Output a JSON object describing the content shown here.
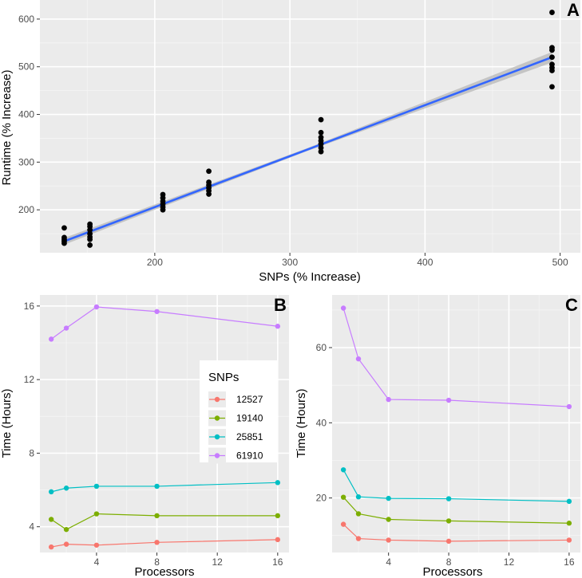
{
  "chart_data": [
    {
      "panel": "A",
      "type": "scatter",
      "title": "",
      "xlabel": "SNPs (% Increase)",
      "ylabel": "Runtime (% Increase)",
      "xlim": [
        115,
        515
      ],
      "ylim": [
        110,
        640
      ],
      "xticks": [
        200,
        300,
        400,
        500
      ],
      "yticks": [
        200,
        300,
        400,
        500,
        600
      ],
      "grid": true,
      "points": [
        {
          "x": 133,
          "y": 162
        },
        {
          "x": 133,
          "y": 142
        },
        {
          "x": 133,
          "y": 138
        },
        {
          "x": 133,
          "y": 134
        },
        {
          "x": 133,
          "y": 130
        },
        {
          "x": 152,
          "y": 170
        },
        {
          "x": 152,
          "y": 165
        },
        {
          "x": 152,
          "y": 158
        },
        {
          "x": 152,
          "y": 150
        },
        {
          "x": 152,
          "y": 143
        },
        {
          "x": 152,
          "y": 138
        },
        {
          "x": 152,
          "y": 126
        },
        {
          "x": 206,
          "y": 232
        },
        {
          "x": 206,
          "y": 225
        },
        {
          "x": 206,
          "y": 218
        },
        {
          "x": 206,
          "y": 212
        },
        {
          "x": 206,
          "y": 206
        },
        {
          "x": 206,
          "y": 200
        },
        {
          "x": 240,
          "y": 281
        },
        {
          "x": 240,
          "y": 258
        },
        {
          "x": 240,
          "y": 252
        },
        {
          "x": 240,
          "y": 246
        },
        {
          "x": 240,
          "y": 240
        },
        {
          "x": 240,
          "y": 233
        },
        {
          "x": 323,
          "y": 389
        },
        {
          "x": 323,
          "y": 362
        },
        {
          "x": 323,
          "y": 352
        },
        {
          "x": 323,
          "y": 345
        },
        {
          "x": 323,
          "y": 338
        },
        {
          "x": 323,
          "y": 330
        },
        {
          "x": 323,
          "y": 322
        },
        {
          "x": 494,
          "y": 614
        },
        {
          "x": 494,
          "y": 540
        },
        {
          "x": 494,
          "y": 535
        },
        {
          "x": 494,
          "y": 520
        },
        {
          "x": 494,
          "y": 505
        },
        {
          "x": 494,
          "y": 498
        },
        {
          "x": 494,
          "y": 492
        },
        {
          "x": 494,
          "y": 458
        }
      ],
      "fit_line": {
        "x": [
          133,
          494
        ],
        "y": [
          134,
          520
        ]
      },
      "colors": {
        "points": "#000000",
        "fit": "#3366ff",
        "band": "#b3b3b3"
      }
    },
    {
      "panel": "B",
      "type": "line",
      "xlabel": "Processors",
      "ylabel": "Time (Hours)",
      "xlim": [
        0.25,
        16.75
      ],
      "ylim": [
        2.6,
        16.6
      ],
      "xticks": [
        4,
        8,
        12,
        16
      ],
      "yticks": [
        4,
        8,
        12,
        16
      ],
      "grid": true,
      "x": [
        1,
        2,
        4,
        8,
        16
      ],
      "legend": {
        "title": "SNPs",
        "placement": "right-middle"
      },
      "series": [
        {
          "name": "12527",
          "color": "#f8766d",
          "values": [
            2.9,
            3.05,
            3.0,
            3.15,
            3.3
          ]
        },
        {
          "name": "19140",
          "color": "#7cae00",
          "values": [
            4.4,
            3.85,
            4.7,
            4.6,
            4.6
          ]
        },
        {
          "name": "25851",
          "color": "#00bfc4",
          "values": [
            5.9,
            6.1,
            6.2,
            6.2,
            6.4
          ]
        },
        {
          "name": "61910",
          "color": "#c77cff",
          "values": [
            14.2,
            14.8,
            15.95,
            15.7,
            14.9
          ]
        }
      ]
    },
    {
      "panel": "C",
      "type": "line",
      "xlabel": "Processors",
      "ylabel": "Time (Hours)",
      "xlim": [
        0.25,
        16.75
      ],
      "ylim": [
        5.5,
        74
      ],
      "xticks": [
        4,
        8,
        12,
        16
      ],
      "yticks": [
        20,
        40,
        60
      ],
      "grid": true,
      "x": [
        1,
        2,
        4,
        8,
        16
      ],
      "series": [
        {
          "name": "12527",
          "color": "#f8766d",
          "values": [
            13,
            9.2,
            8.8,
            8.5,
            8.8
          ]
        },
        {
          "name": "19140",
          "color": "#7cae00",
          "values": [
            20.2,
            15.8,
            14.3,
            13.9,
            13.3
          ]
        },
        {
          "name": "25851",
          "color": "#00bfc4",
          "values": [
            27.5,
            20.3,
            19.9,
            19.8,
            19.1
          ]
        },
        {
          "name": "61910",
          "color": "#c77cff",
          "values": [
            70.5,
            57.0,
            46.2,
            46.0,
            44.3
          ]
        }
      ]
    }
  ]
}
